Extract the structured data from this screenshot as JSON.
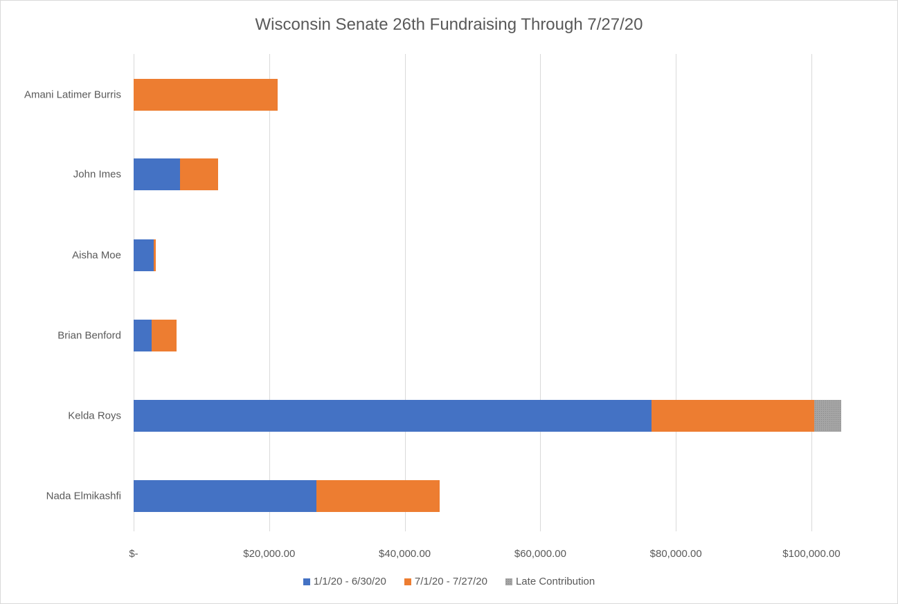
{
  "chart": {
    "title": "Wisconsin Senate 26th Fundraising Through 7/27/20",
    "x_ticks": [
      "$-",
      "$20,000.00",
      "$40,000.00",
      "$60,000.00",
      "$80,000.00",
      "$100,000.00"
    ],
    "legend": [
      {
        "label": "1/1/20 - 6/30/20",
        "color": "#4472c4"
      },
      {
        "label": "7/1/20 - 7/27/20",
        "color": "#ed7d31"
      },
      {
        "label": "Late Contribution",
        "color": "#a5a5a5"
      }
    ]
  },
  "chart_data": {
    "type": "bar",
    "orientation": "horizontal",
    "stacked": true,
    "title": "Wisconsin Senate 26th Fundraising Through 7/27/20",
    "xlabel": "",
    "ylabel": "",
    "xlim": [
      0,
      100000
    ],
    "x_tick_labels": [
      "$-",
      "$20,000.00",
      "$40,000.00",
      "$60,000.00",
      "$80,000.00",
      "$100,000.00"
    ],
    "grid": {
      "vertical": true,
      "horizontal": false
    },
    "legend_position": "bottom",
    "categories": [
      "Amani Latimer Burris",
      "John Imes",
      "Aisha Moe",
      "Brian Benford",
      "Kelda Roys",
      "Nada Elmikashfi"
    ],
    "series": [
      {
        "name": "1/1/20 - 6/30/20",
        "color": "#4472c4",
        "values": [
          0,
          6800,
          3000,
          2700,
          76400,
          27000
        ]
      },
      {
        "name": "7/1/20 - 7/27/20",
        "color": "#ed7d31",
        "values": [
          21200,
          5700,
          300,
          3600,
          24000,
          18100
        ]
      },
      {
        "name": "Late Contribution",
        "color": "#a5a5a5",
        "values": [
          0,
          0,
          0,
          0,
          4000,
          0
        ]
      }
    ]
  }
}
